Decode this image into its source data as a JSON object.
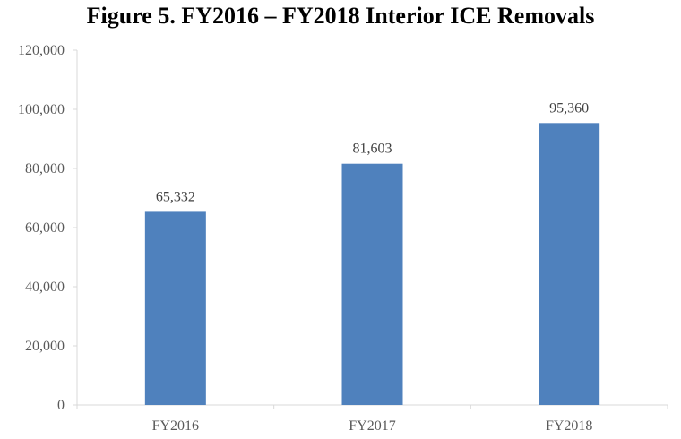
{
  "chart_data": {
    "type": "bar",
    "title": "Figure 5. FY2016 – FY2018 Interior ICE Removals",
    "categories": [
      "FY2016",
      "FY2017",
      "FY2018"
    ],
    "values": [
      65332,
      81603,
      95360
    ],
    "data_labels": [
      "65,332",
      "81,603",
      "95,360"
    ],
    "ylim": [
      0,
      120000
    ],
    "yticks": [
      0,
      20000,
      40000,
      60000,
      80000,
      100000,
      120000
    ],
    "ytick_labels": [
      "0",
      "20,000",
      "40,000",
      "60,000",
      "80,000",
      "100,000",
      "120,000"
    ],
    "xlabel": "",
    "ylabel": "",
    "grid": false,
    "legend": "none",
    "colors": {
      "bar": "#4f81bd",
      "axis": "#d9d9d9",
      "tick_text": "#595959",
      "data_label_text": "#404040"
    }
  }
}
